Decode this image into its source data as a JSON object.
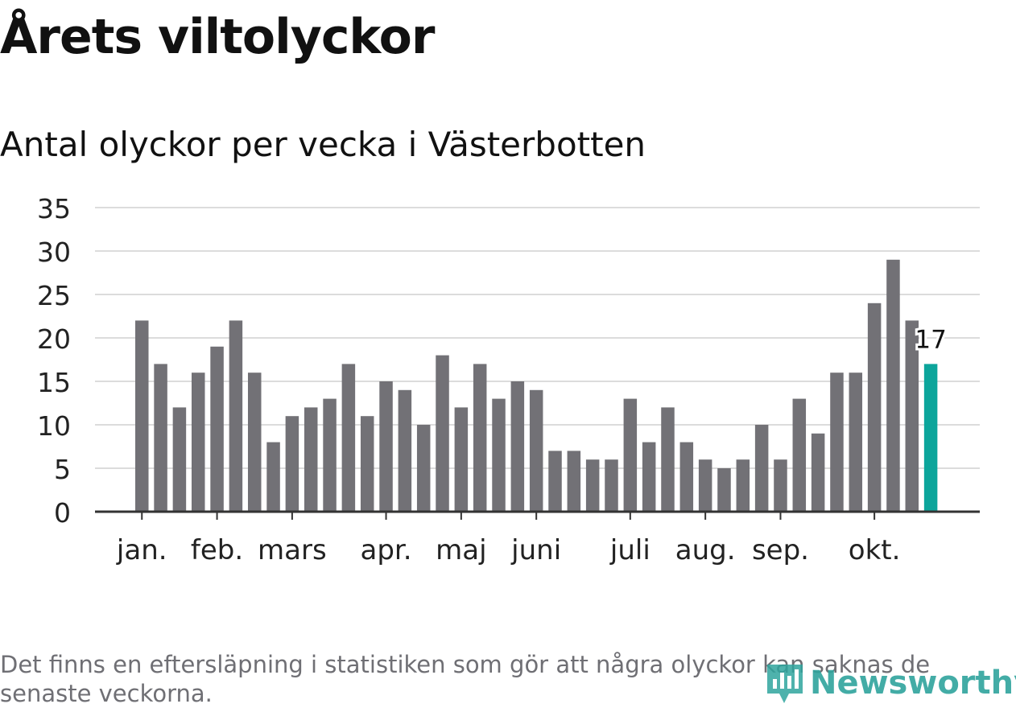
{
  "title": "Årets viltolyckor",
  "subtitle": "Antal olyckor per vecka i Västerbotten",
  "footnote": "Det finns en eftersläpning i statistiken som gör att några olyckor kan saknas de senaste veckorna.",
  "logo": {
    "text": "Newsworthy"
  },
  "colors": {
    "bar": "#727176",
    "highlight": "#0ca59b",
    "grid": "#dcdcdc",
    "axis": "#333333",
    "brand": "#2fa49d"
  },
  "chart_data": {
    "type": "bar",
    "title": "Antal olyckor per vecka i Västerbotten",
    "xlabel": "",
    "ylabel": "",
    "ylim": [
      0,
      35
    ],
    "yticks": [
      0,
      5,
      10,
      15,
      20,
      25,
      30,
      35
    ],
    "grid": true,
    "series": [
      {
        "name": "Antal olyckor",
        "values": [
          22,
          17,
          12,
          16,
          19,
          22,
          16,
          8,
          11,
          12,
          13,
          17,
          11,
          15,
          14,
          10,
          18,
          12,
          17,
          13,
          15,
          14,
          7,
          7,
          6,
          6,
          13,
          8,
          12,
          8,
          6,
          5,
          6,
          10,
          6,
          13,
          9,
          16,
          16,
          24,
          29,
          22,
          17
        ]
      }
    ],
    "month_labels": [
      {
        "label": "jan.",
        "week_index": 0
      },
      {
        "label": "feb.",
        "week_index": 4
      },
      {
        "label": "mars",
        "week_index": 8
      },
      {
        "label": "apr.",
        "week_index": 13
      },
      {
        "label": "maj",
        "week_index": 17
      },
      {
        "label": "juni",
        "week_index": 21
      },
      {
        "label": "juli",
        "week_index": 26
      },
      {
        "label": "aug.",
        "week_index": 30
      },
      {
        "label": "sep.",
        "week_index": 34
      },
      {
        "label": "okt.",
        "week_index": 39
      }
    ],
    "highlight_index": 42,
    "highlight_label": "17"
  }
}
